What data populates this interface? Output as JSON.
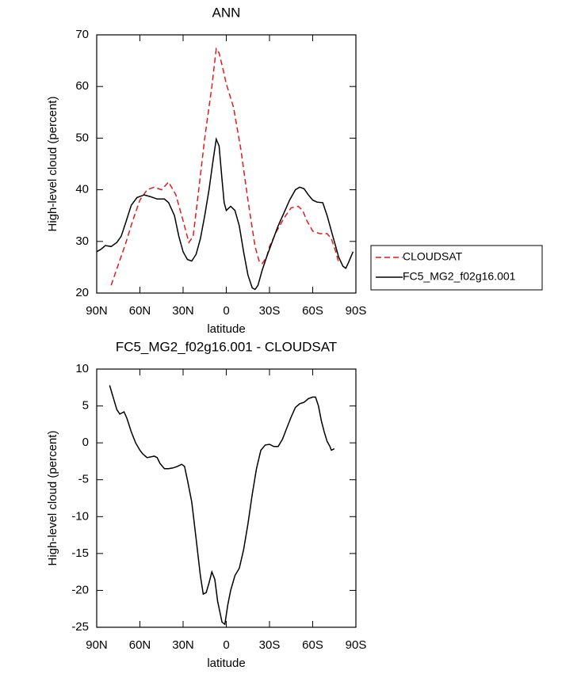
{
  "chart_data": [
    {
      "type": "line",
      "title": "ANN",
      "xlabel": "latitude",
      "ylabel": "High-level cloud (percent)",
      "xlim": [
        90,
        -90
      ],
      "ylim": [
        20,
        70
      ],
      "xticks": [
        {
          "value": 90,
          "label": "90N"
        },
        {
          "value": 60,
          "label": "60N"
        },
        {
          "value": 30,
          "label": "30N"
        },
        0,
        {
          "value": -30,
          "label": "30S"
        },
        {
          "value": -60,
          "label": "60S"
        },
        {
          "value": -90,
          "label": "90S"
        }
      ],
      "yticks": [
        20,
        30,
        40,
        50,
        60,
        70
      ],
      "legend": "right-outside",
      "series": [
        {
          "name": "CLOUDSAT",
          "color": "#e31a1c",
          "dash": true,
          "x": [
            80,
            75,
            70,
            65,
            60,
            55,
            50,
            45,
            40,
            35,
            30,
            26,
            23,
            20,
            15,
            10,
            7,
            5,
            2,
            0,
            -5,
            -10,
            -15,
            -20,
            -23,
            -25,
            -28,
            -30,
            -35,
            -40,
            -45,
            -50,
            -53,
            -56,
            -60,
            -65,
            -70,
            -73,
            -76,
            -78
          ],
          "values": [
            21.5,
            25.5,
            29.5,
            34,
            38,
            40,
            40.5,
            40,
            41.5,
            39,
            34,
            29.8,
            31,
            38,
            50,
            60,
            67.3,
            66.5,
            63,
            60.5,
            56,
            48,
            38,
            29,
            26,
            25.7,
            27,
            29,
            32,
            34.5,
            36.5,
            36.8,
            36,
            34,
            32,
            31.5,
            31.5,
            30.5,
            28,
            26
          ]
        },
        {
          "name": "FC5_MG2_f02g16.001",
          "color": "#000000",
          "dash": false,
          "x": [
            90,
            87,
            84,
            80,
            76,
            73,
            70,
            66,
            62,
            57,
            53,
            48,
            43,
            40,
            36,
            33,
            30,
            27,
            24,
            21,
            18,
            15,
            12,
            9,
            7,
            5,
            3,
            1.5,
            0,
            -3,
            -6,
            -9,
            -12,
            -15,
            -18,
            -20,
            -22,
            -25,
            -28,
            -32,
            -36,
            -40,
            -44,
            -48,
            -51,
            -54,
            -57,
            -60,
            -63,
            -67,
            -70,
            -73,
            -76,
            -78,
            -81,
            -83,
            -85,
            -88
          ],
          "values": [
            28,
            28.5,
            29.2,
            29,
            29.8,
            31,
            33.5,
            37,
            38.5,
            39,
            38.7,
            38.2,
            38.2,
            37.5,
            35,
            31,
            28,
            26.5,
            26.2,
            27.5,
            30.5,
            35,
            40,
            46,
            49.8,
            48.5,
            42,
            37.5,
            36,
            36.8,
            36,
            33,
            28,
            23.5,
            21,
            20.7,
            21.5,
            24.5,
            27,
            30,
            33,
            35.5,
            38,
            40,
            40.5,
            40.2,
            39,
            38,
            37.6,
            37.5,
            35,
            32,
            29,
            27,
            25.2,
            24.8,
            26,
            28
          ]
        }
      ]
    },
    {
      "type": "line",
      "title": "FC5_MG2_f02g16.001 - CLOUDSAT",
      "xlabel": "latitude",
      "ylabel": "High-level cloud (percent)",
      "xlim": [
        90,
        -90
      ],
      "ylim": [
        -25,
        10
      ],
      "xticks": [
        {
          "value": 90,
          "label": "90N"
        },
        {
          "value": 60,
          "label": "60N"
        },
        {
          "value": 30,
          "label": "30N"
        },
        0,
        {
          "value": -30,
          "label": "30S"
        },
        {
          "value": -60,
          "label": "60S"
        },
        {
          "value": -90,
          "label": "90S"
        }
      ],
      "yticks": [
        -25,
        -20,
        -15,
        -10,
        -5,
        0,
        5,
        10
      ],
      "series": [
        {
          "color": "#000000",
          "dash": false,
          "x": [
            81,
            78,
            76,
            74,
            71,
            69,
            66,
            63,
            60,
            58,
            55,
            50,
            48,
            46,
            43,
            40,
            37,
            34,
            31,
            29,
            27,
            24,
            21,
            18,
            16,
            14,
            12,
            10,
            8,
            6,
            3,
            1,
            -1,
            -3,
            -6,
            -9,
            -12,
            -15,
            -18,
            -21,
            -24,
            -27,
            -30,
            -33,
            -36,
            -39,
            -42,
            -45,
            -48,
            -51,
            -54,
            -57,
            -60,
            -62,
            -64,
            -66,
            -68,
            -70,
            -72,
            -73,
            -75
          ],
          "values": [
            7.8,
            5.8,
            4.5,
            3.9,
            4.2,
            3.3,
            1.5,
            0,
            -1,
            -1.5,
            -2,
            -1.8,
            -2,
            -2.8,
            -3.5,
            -3.5,
            -3.4,
            -3.2,
            -2.9,
            -3.2,
            -5,
            -8,
            -13,
            -18,
            -20.5,
            -20.3,
            -19,
            -17.5,
            -18.5,
            -21.5,
            -24.3,
            -24.6,
            -22,
            -20,
            -18,
            -17,
            -14.5,
            -11,
            -7,
            -3.5,
            -1,
            -0.3,
            -0.2,
            -0.5,
            -0.5,
            0.5,
            2,
            3.5,
            4.8,
            5.3,
            5.5,
            6,
            6.2,
            6.2,
            5,
            3,
            1.5,
            0.2,
            -0.5,
            -1,
            -0.8
          ]
        }
      ]
    }
  ]
}
